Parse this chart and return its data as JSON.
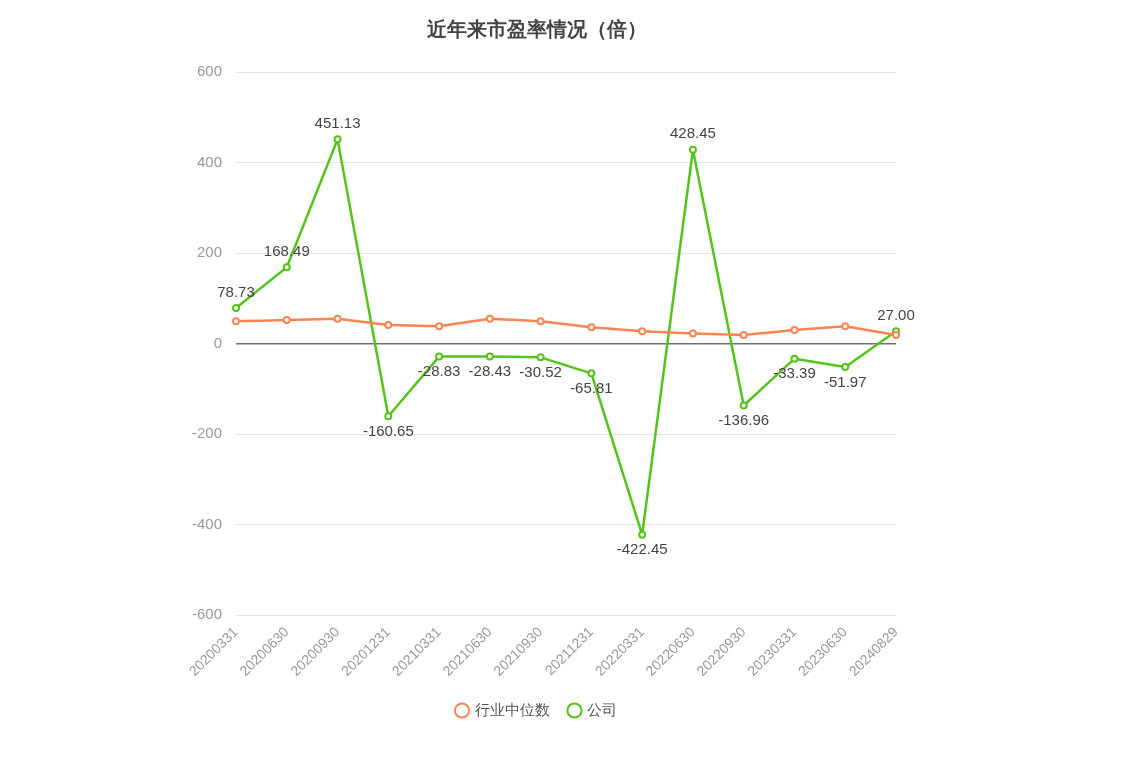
{
  "chart_data": {
    "type": "line",
    "title": "近年来市盈率情况（倍）",
    "categories": [
      "20200331",
      "20200630",
      "20200930",
      "20201231",
      "20210331",
      "20210630",
      "20210930",
      "20211231",
      "20220331",
      "20220630",
      "20220930",
      "20230331",
      "20230630",
      "20240829"
    ],
    "series": [
      {
        "name": "公司",
        "color": "#52c41a",
        "values": [
          78.73,
          168.49,
          451.13,
          -160.65,
          -28.83,
          -28.43,
          -30.52,
          -65.81,
          -422.45,
          428.45,
          -136.96,
          -33.39,
          -51.97,
          27.0
        ],
        "value_labels": [
          "78.73",
          "168.49",
          "451.13",
          "-160.65",
          "-28.83",
          "-28.43",
          "-30.52",
          "-65.81",
          "-422.45",
          "428.45",
          "-136.96",
          "-33.39",
          "-51.97",
          "27.00"
        ]
      },
      {
        "name": "行业中位数",
        "color": "#fa8452",
        "values": [
          49,
          52,
          55,
          41,
          38,
          55,
          49,
          36,
          27,
          22,
          19,
          30,
          38,
          19
        ]
      }
    ],
    "ylim": [
      -600,
      600
    ],
    "yticks": [
      -600,
      -400,
      -200,
      0,
      200,
      400,
      600
    ],
    "grid": "y",
    "legend": "bottom",
    "marker": "circle",
    "line_style": "solid"
  }
}
